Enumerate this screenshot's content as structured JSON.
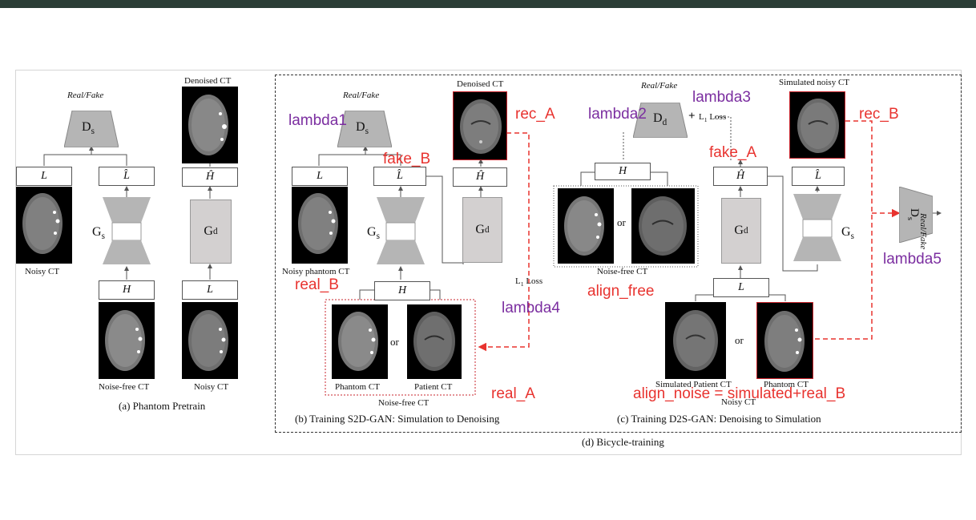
{
  "colors": {
    "annotation_red": "#e8332f",
    "annotation_purple": "#7b2ea0",
    "block_gray": "#d3d0d0"
  },
  "panel_a": {
    "real_fake": "Real/Fake",
    "discriminator": "D",
    "discriminator_sub": "s",
    "label_L": "L",
    "label_Lhat": "L̂",
    "generator_s": "G",
    "generator_s_sub": "s",
    "label_H": "H",
    "denoised_ct": "Denoised CT",
    "label_Hhat": "Ĥ",
    "generator_d": "G",
    "generator_d_sub": "d",
    "label_L2": "L",
    "noisy_ct": "Noisy CT",
    "noise_free_ct": "Noise-free CT",
    "noisy_ct_2": "Noisy CT",
    "caption": "(a) Phantom Pretrain"
  },
  "panel_b": {
    "real_fake": "Real/Fake",
    "discriminator": "D",
    "discriminator_sub": "s",
    "label_L": "L",
    "label_Lhat": "L̂",
    "label_Hhat": "Ĥ",
    "denoised_ct": "Denoised CT",
    "generator_s": "G",
    "generator_s_sub": "s",
    "generator_d": "G",
    "generator_d_sub": "d",
    "noisy_phantom_ct": "Noisy phantom CT",
    "label_H": "H",
    "l1_loss": "L",
    "l1_loss_sub": "1",
    "l1_loss_word": "Loss",
    "or": "or",
    "phantom_ct": "Phantom CT",
    "patient_ct": "Patient CT",
    "noise_free_ct": "Noise-free CT",
    "caption": "(b) Training S2D-GAN: Simulation to Denoising"
  },
  "panel_c": {
    "real_fake": "Real/Fake",
    "discriminator": "D",
    "discriminator_sub": "d",
    "l1_loss": "L",
    "l1_loss_sub": "1",
    "l1_loss_word": "Loss",
    "plus": "+",
    "simulated_noisy_ct": "Simulated noisy CT",
    "label_H": "H",
    "label_Hhat": "Ĥ",
    "label_Lhat": "L̂",
    "or": "or",
    "noise_free_ct": "Noise-free CT",
    "generator_d": "G",
    "generator_d_sub": "d",
    "generator_s": "G",
    "generator_s_sub": "s",
    "label_L": "L",
    "or2": "or",
    "simulated_patient_ct": "Simulated Patient CT",
    "phantom_ct": "Phantom CT",
    "noisy_ct": "Noisy CT",
    "discriminator_s": "D",
    "discriminator_s_sub": "s",
    "real_fake_vertical": "Real/Fake",
    "caption": "(c) Training D2S-GAN: Denoising  to Simulation"
  },
  "bicycle_caption": "(d) Bicycle-training",
  "annotations": {
    "lambda1": "lambda1",
    "fake_B": "fake_B",
    "rec_A": "rec_A",
    "real_B": "real_B",
    "lambda4": "lambda4",
    "real_A": "real_A",
    "lambda2": "lambda2",
    "lambda3": "lambda3",
    "fake_A": "fake_A",
    "rec_B": "rec_B",
    "align_free": "align_free",
    "lambda5": "lambda5",
    "align_noise": "align_noise = simulated+real_B"
  }
}
